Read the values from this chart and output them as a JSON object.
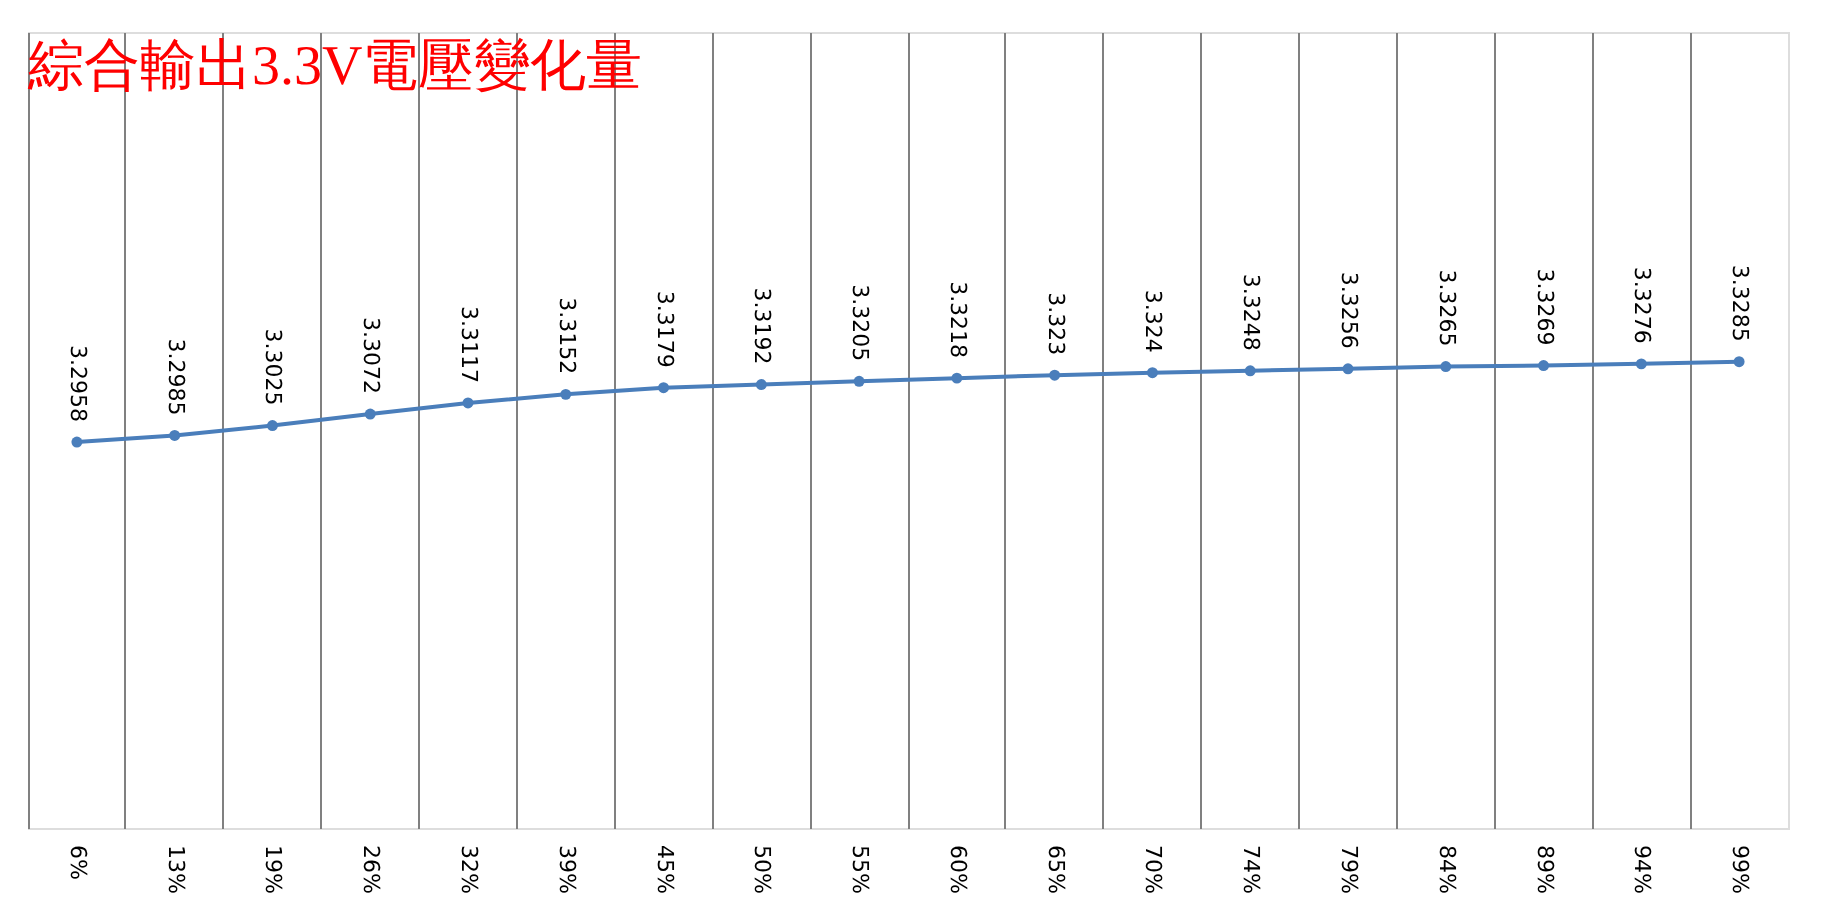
{
  "chart_data": {
    "type": "line",
    "title": "綜合輸出3.3V電壓變化量",
    "categories": [
      "6%",
      "13%",
      "19%",
      "26%",
      "32%",
      "39%",
      "45%",
      "50%",
      "55%",
      "60%",
      "65%",
      "70%",
      "74%",
      "79%",
      "84%",
      "89%",
      "94%",
      "99%"
    ],
    "series": [
      {
        "color": "#4a7ebb",
        "values": [
          3.2958,
          3.2985,
          3.3025,
          3.3072,
          3.3117,
          3.3152,
          3.3179,
          3.3192,
          3.3205,
          3.3218,
          3.323,
          3.324,
          3.3248,
          3.3256,
          3.3265,
          3.3269,
          3.3276,
          3.3285
        ]
      }
    ],
    "data_labels": true,
    "marker": "circle",
    "grid": "x",
    "tick_labels": "x"
  }
}
